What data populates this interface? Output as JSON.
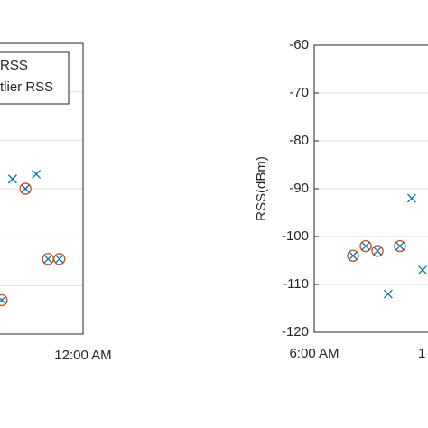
{
  "chart_data": [
    {
      "type": "scatter",
      "series": [
        {
          "name": "RSS",
          "color": "#0072bd",
          "marker": "x",
          "x": [
            22.63,
            23.09
          ],
          "values": [
            -88,
            -87
          ]
        },
        {
          "name": "tlier RSS",
          "color": "#d95319",
          "marker": "circle-x",
          "x": [
            22.42,
            22.88,
            23.32,
            23.54
          ],
          "values": [
            -113,
            -90,
            -104.5,
            -104.5
          ]
        }
      ],
      "xlim": [
        18,
        24
      ],
      "xticks": [
        {
          "value": 24,
          "label": "12:00 AM"
        }
      ],
      "ylim": [
        -120,
        -60
      ],
      "yticks": [
        -120,
        -110,
        -100,
        -90,
        -80,
        -70,
        -60
      ],
      "grid": true,
      "legend": "northwest"
    },
    {
      "type": "scatter",
      "y_label": "RSS(dBm)",
      "series": [
        {
          "color": "#0072bd",
          "marker": "x",
          "x": [
            9.46,
            10.56,
            11.07
          ],
          "values": [
            -112,
            -92,
            -107
          ]
        },
        {
          "color": "#d95319",
          "marker": "circle-x",
          "x": [
            7.82,
            8.41,
            8.96,
            10.01
          ],
          "values": [
            -104,
            -102,
            -103,
            -102
          ]
        }
      ],
      "xlim": [
        6,
        12
      ],
      "xticks": [
        {
          "value": 6,
          "label": "6:00 AM"
        },
        {
          "value": 12,
          "label": "1"
        }
      ],
      "ylim": [
        -120,
        -60
      ],
      "yticks": [
        -120,
        -110,
        -100,
        -90,
        -80,
        -70,
        -60
      ],
      "grid": true
    }
  ]
}
